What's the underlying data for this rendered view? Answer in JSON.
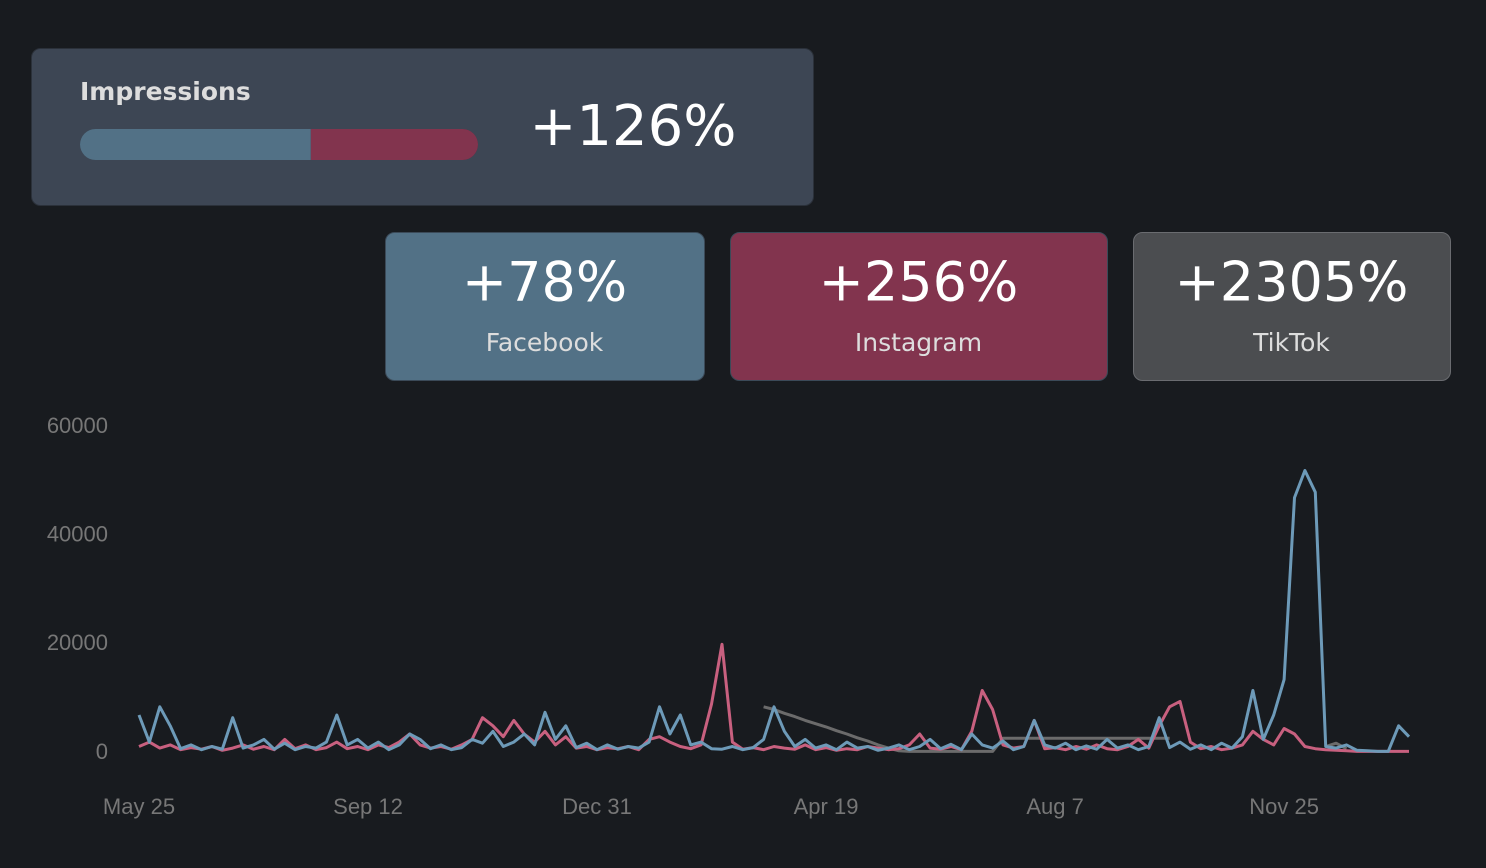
{
  "impressions": {
    "title": "Impressions",
    "change": "+126%",
    "bar": [
      {
        "color": "#527186",
        "value": 58
      },
      {
        "color": "#82344e",
        "value": 42
      }
    ]
  },
  "cards": [
    {
      "value": "+78%",
      "label": "Facebook",
      "color": "#527186"
    },
    {
      "value": "+256%",
      "label": "Instagram",
      "color": "#82344e"
    },
    {
      "value": "+2305%",
      "label": "TikTok",
      "color": "#4b4d50"
    }
  ],
  "chart_data": {
    "type": "line",
    "categories": [
      "May 25",
      null,
      null,
      null,
      null,
      null,
      null,
      null,
      null,
      null,
      null,
      null,
      null,
      null,
      null,
      null,
      null,
      null,
      null,
      null,
      null,
      null,
      "Sep 12",
      null,
      null,
      null,
      null,
      null,
      null,
      null,
      null,
      null,
      null,
      null,
      null,
      null,
      null,
      null,
      null,
      null,
      null,
      null,
      null,
      null,
      "Dec 31",
      null,
      null,
      null,
      null,
      null,
      null,
      null,
      null,
      null,
      null,
      null,
      null,
      null,
      null,
      null,
      null,
      null,
      null,
      null,
      null,
      null,
      "Apr 19",
      null,
      null,
      null,
      null,
      null,
      null,
      null,
      null,
      null,
      null,
      null,
      null,
      null,
      null,
      null,
      null,
      null,
      null,
      null,
      null,
      null,
      "Aug 7",
      null,
      null,
      null,
      null,
      null,
      null,
      null,
      null,
      null,
      null,
      null,
      null,
      null,
      null,
      null,
      null,
      null,
      null,
      null,
      null,
      null,
      "Nov 25",
      null,
      null,
      null,
      null,
      null,
      null,
      null,
      null,
      null,
      null,
      null,
      null
    ],
    "series": [
      {
        "color": "#6b6b6b",
        "values": [
          null,
          null,
          null,
          null,
          null,
          null,
          null,
          null,
          null,
          null,
          null,
          null,
          null,
          null,
          null,
          null,
          null,
          null,
          null,
          null,
          null,
          null,
          null,
          null,
          null,
          null,
          null,
          null,
          null,
          null,
          null,
          null,
          null,
          null,
          null,
          null,
          null,
          null,
          null,
          null,
          null,
          null,
          null,
          null,
          null,
          null,
          null,
          null,
          null,
          null,
          null,
          null,
          null,
          null,
          null,
          null,
          null,
          null,
          null,
          null,
          8500,
          8000,
          7300,
          6700,
          6000,
          5400,
          4800,
          4100,
          3500,
          2800,
          2200,
          1500,
          900,
          400,
          300,
          300,
          300,
          300,
          300,
          300,
          300,
          300,
          300,
          2700,
          2700,
          2700,
          2700,
          2700,
          2700,
          2700,
          2700,
          2700,
          2700,
          2700,
          2700,
          2700,
          2700,
          2700,
          2700,
          2700,
          null,
          null,
          null,
          null,
          null,
          null,
          null,
          null,
          null,
          null,
          null,
          null,
          null,
          null,
          1200,
          1800,
          800,
          null,
          null,
          null,
          null,
          null,
          null
        ]
      },
      {
        "color": "#c8607f",
        "values": [
          1200,
          2000,
          900,
          1500,
          600,
          1000,
          700,
          1200,
          500,
          900,
          1500,
          700,
          1200,
          600,
          2500,
          800,
          1500,
          600,
          1000,
          2000,
          800,
          1200,
          600,
          1500,
          1000,
          2000,
          3500,
          1500,
          900,
          1200,
          700,
          1500,
          2500,
          6500,
          5000,
          3000,
          6000,
          3500,
          2000,
          4000,
          1500,
          3000,
          900,
          1200,
          600,
          1000,
          800,
          1200,
          600,
          2500,
          3000,
          2000,
          1200,
          800,
          1500,
          9000,
          20000,
          2000,
          700,
          1000,
          600,
          1200,
          900,
          700,
          1500,
          600,
          1000,
          500,
          800,
          600,
          1200,
          900,
          600,
          800,
          1500,
          3500,
          900,
          700,
          1200,
          600,
          4000,
          11500,
          8000,
          1500,
          900,
          1200,
          6000,
          800,
          1000,
          600,
          1200,
          700,
          1500,
          800,
          600,
          1200,
          2500,
          900,
          5000,
          8500,
          9500,
          2000,
          800,
          1200,
          600,
          900,
          1500,
          4000,
          2500,
          1500,
          4500,
          3500,
          1200,
          800,
          600,
          500,
          400,
          300,
          300,
          300,
          300,
          300,
          300
        ]
      },
      {
        "color": "#6d9ab8",
        "values": [
          7000,
          2000,
          8500,
          5000,
          800,
          1500,
          600,
          1200,
          700,
          6500,
          900,
          1500,
          2500,
          700,
          1800,
          600,
          1200,
          900,
          2000,
          7000,
          1500,
          2500,
          900,
          2000,
          600,
          1500,
          3500,
          2500,
          800,
          1500,
          600,
          1000,
          2500,
          1800,
          4000,
          1200,
          2000,
          3500,
          1500,
          7500,
          2500,
          5000,
          1000,
          1800,
          600,
          1500,
          700,
          1200,
          900,
          2000,
          8500,
          3500,
          7000,
          1500,
          2000,
          800,
          700,
          1200,
          600,
          1000,
          2500,
          8500,
          4000,
          1200,
          2500,
          900,
          1500,
          600,
          2000,
          900,
          1200,
          500,
          900,
          1500,
          600,
          1200,
          2500,
          800,
          1600,
          600,
          3500,
          1500,
          900,
          2200,
          600,
          1200,
          6000,
          1500,
          900,
          1800,
          600,
          1300,
          700,
          2500,
          900,
          1500,
          600,
          1200,
          6500,
          1000,
          2000,
          700,
          1500,
          600,
          1800,
          900,
          3000,
          11500,
          2500,
          7000,
          13500,
          47000,
          52000,
          48000,
          1200,
          900,
          1500,
          500,
          400,
          300,
          300,
          5000,
          3000
        ]
      }
    ],
    "ylim": [
      0,
      60000
    ],
    "yticks": [
      0,
      20000,
      40000,
      60000
    ]
  }
}
